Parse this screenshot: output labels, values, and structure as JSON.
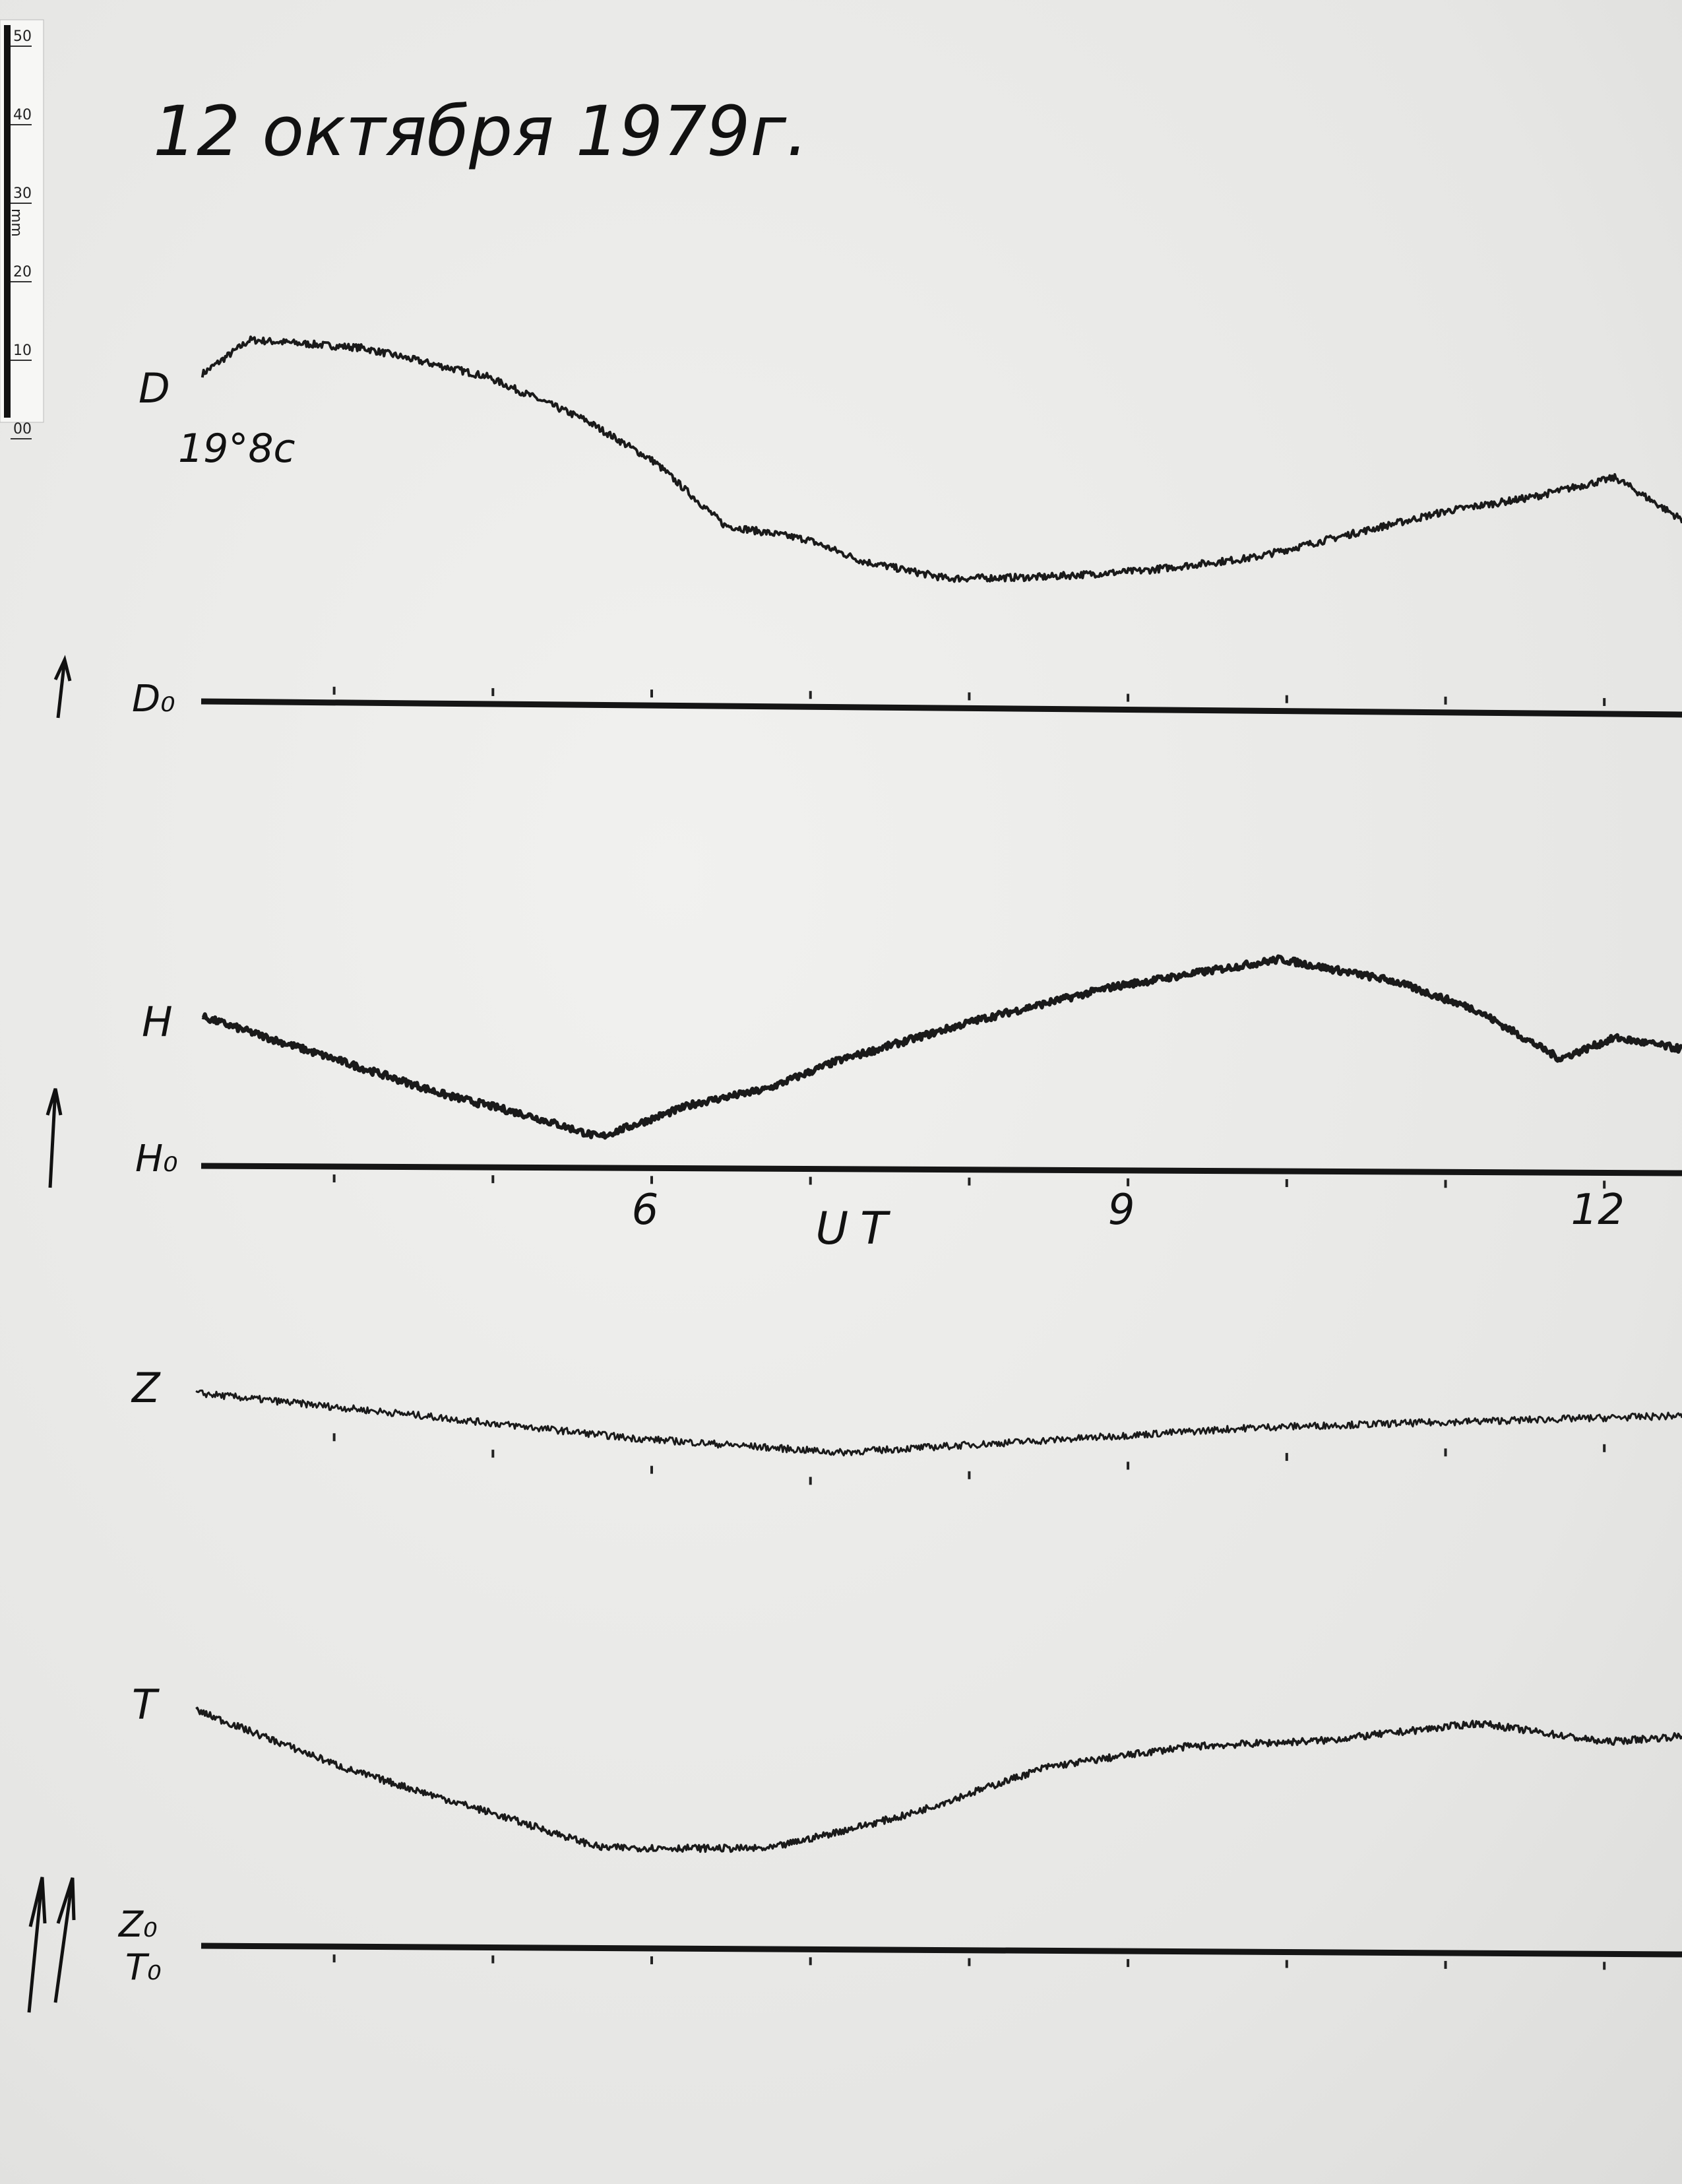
{
  "title": "12 октября 1979г.",
  "ruler": {
    "unit": "mm",
    "ticks": [
      "50",
      "40",
      "30",
      "20",
      "10",
      "00"
    ]
  },
  "chart_data": {
    "type": "line",
    "title": "12 октября 1979г.",
    "xlabel": "UT",
    "x_unit": "hours UT",
    "xlim": [
      3.15,
      12.5
    ],
    "x_tick_labels": [
      {
        "value": 6,
        "label": "6"
      },
      {
        "value": 9,
        "label": "9"
      },
      {
        "value": 12,
        "label": "12"
      }
    ],
    "hour_marks": [
      4,
      5,
      6,
      7,
      8,
      9,
      10,
      11,
      12
    ],
    "y_unit": "mm deflection above baseline",
    "grid": false,
    "color": "#1a1a1a",
    "annotations": {
      "d_base": "19°8c"
    },
    "series": [
      {
        "name": "D",
        "baseline": "D₀",
        "x": [
          3.17,
          3.47,
          4.18,
          4.96,
          5.58,
          6.02,
          6.46,
          6.98,
          7.33,
          7.86,
          8.47,
          9.09,
          9.79,
          10.32,
          11.02,
          11.54,
          12.07,
          12.49
        ],
        "values": [
          41.7,
          46.1,
          45.2,
          41.7,
          36.3,
          31,
          23,
          21.3,
          18.6,
          16.5,
          16.8,
          17.7,
          19.5,
          22.2,
          25.7,
          27.5,
          30.1,
          24.8
        ]
      },
      {
        "name": "H",
        "baseline": "H₀",
        "x": [
          3.17,
          4.0,
          4.7,
          5.23,
          5.67,
          6.28,
          6.72,
          7.16,
          8.04,
          8.91,
          9.96,
          10.67,
          11.19,
          11.72,
          12.07,
          12.49
        ],
        "values": [
          19,
          13.7,
          9.2,
          6.6,
          3.9,
          8.3,
          10.1,
          13.7,
          19,
          23.4,
          27,
          24.3,
          20.7,
          14.5,
          17.2,
          15.8
        ]
      },
      {
        "name": "Z",
        "baseline": "Z₀",
        "x": [
          3.13,
          4.54,
          5.86,
          7.18,
          8.49,
          9.81,
          11.12,
          12.49
        ],
        "values": [
          70.4,
          67.7,
          65,
          63.3,
          65,
          66.8,
          67.7,
          68.6
        ]
      },
      {
        "name": "T",
        "baseline": "T₀",
        "x": [
          3.13,
          4.1,
          4.98,
          5.68,
          6.74,
          7.61,
          8.49,
          9.37,
          10.25,
          11.21,
          12.0,
          12.49
        ],
        "values": [
          30,
          22.5,
          17.2,
          12.8,
          12.8,
          17.2,
          23.4,
          26.1,
          27,
          29.3,
          27,
          27.8
        ]
      }
    ]
  }
}
